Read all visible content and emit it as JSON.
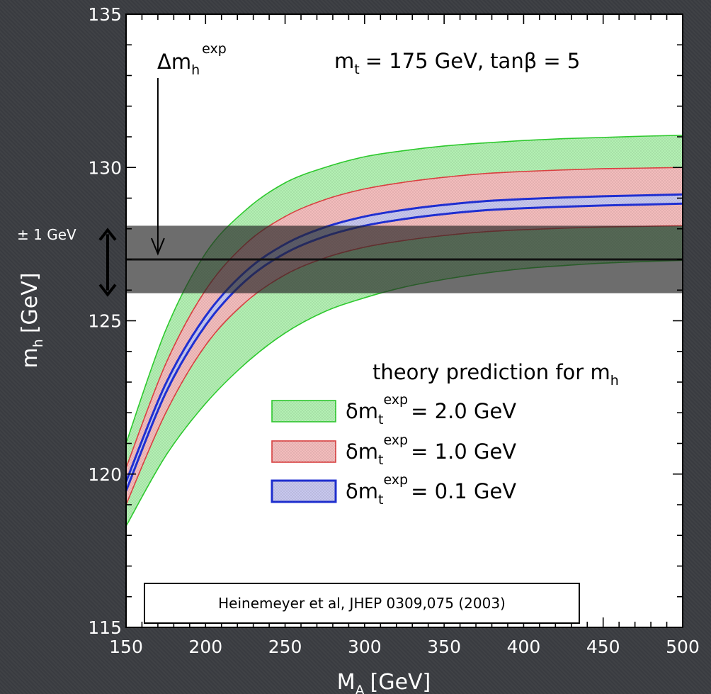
{
  "chart_data": {
    "type": "area",
    "xlabel": "M",
    "xlabel_sub": "A",
    "xlabel_unit": "[GeV]",
    "ylabel": "m",
    "ylabel_sub": "h",
    "ylabel_unit": "[GeV]",
    "xlim": [
      150,
      500
    ],
    "ylim": [
      115,
      135
    ],
    "xticks": [
      "150",
      "200",
      "250",
      "300",
      "350",
      "400",
      "450",
      "500"
    ],
    "yticks": [
      "115",
      "120",
      "125",
      "130",
      "135"
    ],
    "grid": false,
    "legend_position": "right",
    "header": {
      "mt_symbol": "m",
      "mt_sub": "t",
      "mt_value": "= 175 GeV,",
      "tanb": "tanβ = 5"
    },
    "experimental": {
      "label": "Δm",
      "label_sub": "h",
      "label_sup": "exp",
      "central": 127.0,
      "band": [
        125.9,
        128.1
      ],
      "band_label": "± 1 GeV",
      "arrow_x": 170
    },
    "legend": {
      "title": "theory prediction for m",
      "title_sub": "h",
      "symbol": "δm",
      "symbol_sub": "t",
      "symbol_sup": "exp"
    },
    "series": [
      {
        "name": "= 2.0 GeV",
        "fill": "#b3f0b3",
        "edge": "#2ec92e",
        "x": [
          150,
          175,
          200,
          225,
          250,
          275,
          300,
          325,
          350,
          375,
          400,
          425,
          450,
          475,
          500
        ],
        "upper": [
          121.0,
          124.7,
          127.2,
          128.6,
          129.5,
          130.0,
          130.35,
          130.55,
          130.7,
          130.8,
          130.88,
          130.94,
          130.98,
          131.02,
          131.05
        ],
        "lower": [
          118.3,
          120.6,
          122.3,
          123.6,
          124.6,
          125.3,
          125.75,
          126.1,
          126.35,
          126.55,
          126.7,
          126.8,
          126.88,
          126.93,
          126.97
        ]
      },
      {
        "name": "= 1.0 GeV",
        "fill": "#f3bcbc",
        "edge": "#d94040",
        "x": [
          150,
          175,
          200,
          225,
          250,
          275,
          300,
          325,
          350,
          375,
          400,
          425,
          450,
          475,
          500
        ],
        "upper": [
          120.2,
          123.6,
          126.0,
          127.5,
          128.4,
          128.95,
          129.3,
          129.52,
          129.68,
          129.8,
          129.87,
          129.92,
          129.96,
          129.98,
          130.0
        ],
        "lower": [
          119.0,
          122.0,
          124.2,
          125.6,
          126.5,
          127.05,
          127.4,
          127.62,
          127.78,
          127.9,
          127.97,
          128.02,
          128.06,
          128.08,
          128.1
        ]
      },
      {
        "name": "= 0.1 GeV",
        "fill": "#c7c7ee",
        "edge": "#1f2fd1",
        "x": [
          150,
          175,
          200,
          225,
          250,
          275,
          300,
          325,
          350,
          375,
          400,
          425,
          450,
          475,
          500
        ],
        "upper": [
          119.75,
          122.95,
          125.15,
          126.6,
          127.5,
          128.05,
          128.4,
          128.62,
          128.78,
          128.9,
          128.97,
          129.02,
          129.06,
          129.09,
          129.12
        ],
        "lower": [
          119.45,
          122.65,
          124.85,
          126.3,
          127.2,
          127.75,
          128.1,
          128.32,
          128.48,
          128.6,
          128.67,
          128.72,
          128.76,
          128.79,
          128.82
        ]
      }
    ],
    "citation": "Heinemeyer et al, JHEP 0309,075 (2003)"
  }
}
